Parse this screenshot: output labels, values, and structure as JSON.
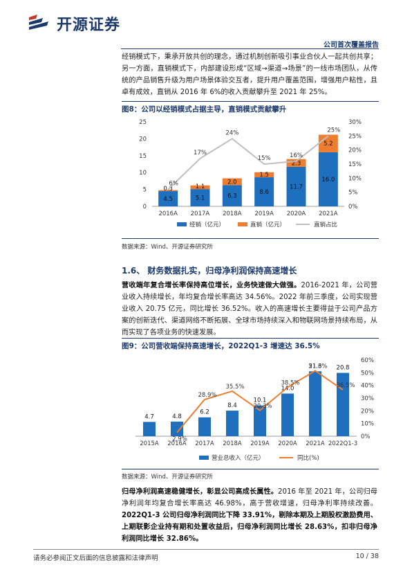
{
  "header": {
    "brand": "开源证券",
    "report_tag": "公司首次覆盖报告"
  },
  "intro_paragraph": "经销模式下，秉承开放共创的理念，通过机制创新吸引事业合伙人一起共创共享；另一方面，直销模式下，内部建设形成“区域→渠道→场景”的一线市场团队，从传统的产品销售升级为用户场景体验交互者，提升用户覆盖范围，增强用户粘性，且卓有成效，直销从 2016 年 6%的收入贡献攀升至 2021 年 25%。",
  "figure8": {
    "title": "图8：公司以经销模式占据主导，直销模式贡献攀升",
    "source": "数据来源：Wind、开源证券研究所"
  },
  "section": {
    "title": "1.6、 财务数据扎实，归母净利润保持高速增长"
  },
  "revenue_paragraph": {
    "lead": "营收端年复合增长率保持高位增长，业务快速做大做强。",
    "body": "2016-2021 年，公司营业收入持续增长，年均复合增长率高达 34.56%。2022 年前三季度，公司实现营业收入 20.75 亿元，同比增长 36.52%。收入的高速增长主要得益于公司产品方案的创新迭代、渠道网络不断拓展、全球市场持续深入和物联网场景持续布局，从而实现了各项业务的快速发展。"
  },
  "figure9": {
    "title": "图9：公司营收端保持高速增长，2022Q1-3 增速达 36.5%",
    "source": "数据来源：Wind、开源证券研究所"
  },
  "profit_paragraph": {
    "lead": "归母净利润高速稳健增长，彰显公司高成长属性。",
    "body": "2016 年至 2021 年，公司归母净利润年均复合增长率高达 46.98%，高于营收增速，归母净利率持续改善。",
    "bold_tail": "2022Q1-3 公司归母净利润同比下降 33.91%，剔除本期及上期股权激励费用、上期联影企业持有期和处置收益后，归母净利润同比增长 28.63%，扣非归母净利润同比增长 32.86%。"
  },
  "footer": {
    "disclaimer": "请务必参阅正文后面的信息披露和法律声明",
    "page": "10 / 38"
  },
  "colors": {
    "brand": "#1b3a6b",
    "bar_blue": "#1f6fbf",
    "bar_orange": "#ed7d31",
    "line_gray": "#bfbfbf"
  },
  "chart_data": [
    {
      "type": "bar",
      "stacked": true,
      "categories": [
        "2016A",
        "2017A",
        "2018A",
        "2019A",
        "2020A",
        "2021A"
      ],
      "series": [
        {
          "name": "经销（亿元）",
          "values": [
            4.5,
            5.1,
            6.3,
            8.6,
            11.7,
            16.0
          ],
          "labels": [
            "4.5",
            "5.1",
            "6.3",
            "8.6",
            "11.7",
            "16.0"
          ]
        },
        {
          "name": "直销（亿元）",
          "values": [
            0.3,
            1.1,
            2.0,
            1.5,
            2.3,
            5.2
          ],
          "labels": [
            "0.3",
            "1.1",
            "2.0",
            "1.5",
            "2.3",
            "5.2"
          ]
        }
      ],
      "line_series": {
        "name": "直销占比",
        "values": [
          6,
          17,
          24,
          15,
          16,
          25
        ],
        "labels": [
          "6%",
          "17%",
          "24%",
          "15%",
          "16%",
          "25%"
        ]
      },
      "left_ticks": [
        "0",
        "5",
        "10",
        "15",
        "20",
        "25"
      ],
      "right_ticks": [
        "0%",
        "5%",
        "10%",
        "15%",
        "20%",
        "25%",
        "30%"
      ],
      "ylim": [
        0,
        25
      ],
      "y2lim": [
        0,
        30
      ],
      "legend_position": "bottom"
    },
    {
      "type": "bar",
      "categories": [
        "2015A",
        "2016A",
        "2017A",
        "2018A",
        "2019A",
        "2020A",
        "2021A",
        "2022Q1-3"
      ],
      "series": [
        {
          "name": "营业总收入（亿元）",
          "values": [
            4.7,
            4.8,
            6.2,
            8.4,
            10.1,
            14.0,
            21.3,
            20.8
          ],
          "labels": [
            "4.7",
            "4.8",
            "6.2",
            "8.4",
            "10.1",
            "14.0",
            "21.3",
            "20.8"
          ]
        }
      ],
      "line_series": {
        "name": "同比(%)",
        "values": [
          null,
          2.9,
          28.9,
          35.5,
          20.3,
          38.5,
          51.6,
          36.5
        ],
        "labels": [
          "",
          "2.9%",
          "28.9%",
          "35.5%",
          "20.3%",
          "38.5%",
          "51.6%",
          "36.5%"
        ]
      },
      "right_ticks": [
        "0%",
        "10%",
        "20%",
        "30%",
        "40%",
        "50%",
        "60%"
      ],
      "ylim": [
        0,
        25
      ],
      "y2lim": [
        0,
        60
      ],
      "legend_position": "bottom"
    }
  ]
}
